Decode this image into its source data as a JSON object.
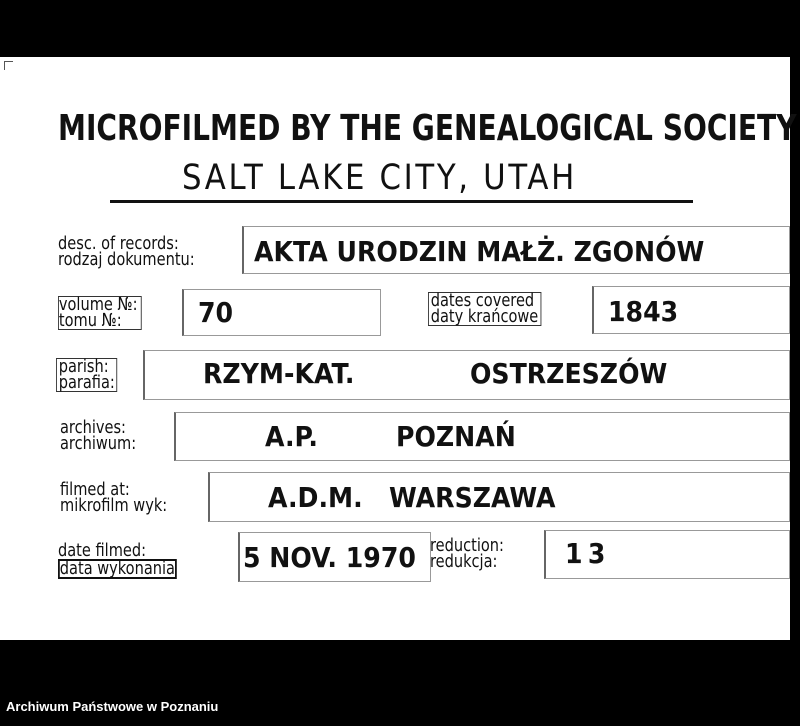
{
  "header": {
    "title": "MICROFILMED BY THE GENEALOGICAL SOCIETY",
    "subtitle": "SALT LAKE CITY, UTAH"
  },
  "fields": {
    "desc": {
      "label_en": "desc. of records:",
      "label_pl": "rodzaj dokumentu:",
      "value": "AKTA URODZIN MAŁŻ. ZGONÓW"
    },
    "volume": {
      "label_en": "volume №:",
      "label_pl": "tomu №:",
      "value": "70"
    },
    "dates": {
      "label_en": "dates covered",
      "label_pl": "daty krańcowe",
      "value": "1843"
    },
    "parish": {
      "label_en": "parish:",
      "label_pl": "parafia:",
      "value_1": "RZYM-KAT.",
      "value_2": "OSTRZESZÓW"
    },
    "archives": {
      "label_en": "archives:",
      "label_pl": "archiwum:",
      "value_1": "A.P.",
      "value_2": "POZNAŃ"
    },
    "filmed_at": {
      "label_en": "filmed at:",
      "label_pl": "mikrofilm wyk:",
      "value": "A.D.M.   WARSZAWA"
    },
    "date_filmed": {
      "label_en": "date filmed:",
      "label_pl": "data wykonania",
      "value": "5 NOV. 1970"
    },
    "reduction": {
      "label_en": "reduction:",
      "label_pl": "redukcja:",
      "value": "13"
    }
  },
  "footer": {
    "source": "Archiwum Państwowe w Poznaniu"
  }
}
